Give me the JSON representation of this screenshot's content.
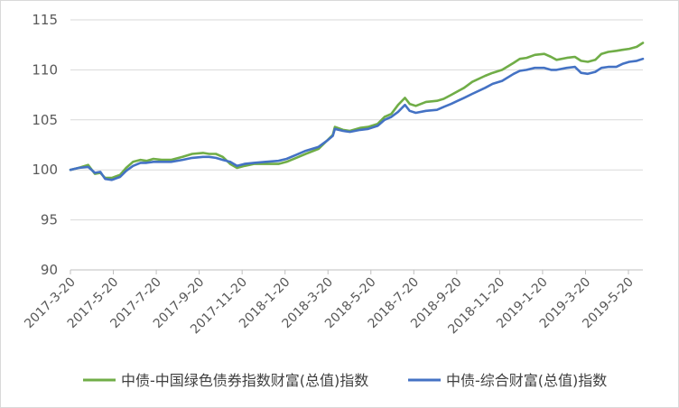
{
  "chart_data": {
    "type": "line",
    "title": "",
    "xlabel": "",
    "ylabel": "",
    "ylim": [
      90,
      115
    ],
    "yticks": [
      90,
      95,
      100,
      105,
      110,
      115
    ],
    "xtick_labels": [
      "2017-3-20",
      "2017-5-20",
      "2017-7-20",
      "2017-9-20",
      "2017-11-20",
      "2018-1-20",
      "2018-3-20",
      "2018-5-20",
      "2018-7-20",
      "2018-9-20",
      "2018-11-20",
      "2019-1-20",
      "2019-3-20",
      "2019-5-20"
    ],
    "xlim": [
      "2017-03-20",
      "2019-07-10"
    ],
    "grid": "horizontal",
    "legend_position": "bottom",
    "series": [
      {
        "name": "中债-中国绿色债券指数财富(总值)指数",
        "color": "#70ad47",
        "points": [
          [
            "2017-03-20",
            100.0
          ],
          [
            "2017-04-01",
            100.2
          ],
          [
            "2017-04-15",
            100.5
          ],
          [
            "2017-04-25",
            99.6
          ],
          [
            "2017-05-03",
            99.7
          ],
          [
            "2017-05-10",
            99.2
          ],
          [
            "2017-05-20",
            99.2
          ],
          [
            "2017-06-01",
            99.5
          ],
          [
            "2017-06-10",
            100.2
          ],
          [
            "2017-06-20",
            100.8
          ],
          [
            "2017-07-01",
            101.0
          ],
          [
            "2017-07-10",
            100.9
          ],
          [
            "2017-07-20",
            101.1
          ],
          [
            "2017-08-01",
            101.0
          ],
          [
            "2017-08-15",
            101.0
          ],
          [
            "2017-09-01",
            101.3
          ],
          [
            "2017-09-15",
            101.6
          ],
          [
            "2017-10-01",
            101.7
          ],
          [
            "2017-10-10",
            101.6
          ],
          [
            "2017-10-20",
            101.6
          ],
          [
            "2017-10-30",
            101.3
          ],
          [
            "2017-11-10",
            100.6
          ],
          [
            "2017-11-20",
            100.2
          ],
          [
            "2017-12-01",
            100.4
          ],
          [
            "2017-12-15",
            100.6
          ],
          [
            "2018-01-01",
            100.6
          ],
          [
            "2018-01-20",
            100.6
          ],
          [
            "2018-02-01",
            100.8
          ],
          [
            "2018-02-15",
            101.2
          ],
          [
            "2018-03-01",
            101.6
          ],
          [
            "2018-03-20",
            102.1
          ],
          [
            "2018-04-01",
            102.9
          ],
          [
            "2018-04-10",
            103.5
          ],
          [
            "2018-04-13",
            104.3
          ],
          [
            "2018-04-25",
            104.0
          ],
          [
            "2018-05-05",
            103.9
          ],
          [
            "2018-05-20",
            104.2
          ],
          [
            "2018-06-01",
            104.3
          ],
          [
            "2018-06-15",
            104.6
          ],
          [
            "2018-06-25",
            105.3
          ],
          [
            "2018-07-05",
            105.6
          ],
          [
            "2018-07-15",
            106.5
          ],
          [
            "2018-07-25",
            107.2
          ],
          [
            "2018-08-01",
            106.6
          ],
          [
            "2018-08-10",
            106.4
          ],
          [
            "2018-08-25",
            106.8
          ],
          [
            "2018-09-10",
            106.9
          ],
          [
            "2018-09-20",
            107.1
          ],
          [
            "2018-10-01",
            107.5
          ],
          [
            "2018-10-20",
            108.2
          ],
          [
            "2018-11-01",
            108.8
          ],
          [
            "2018-11-20",
            109.4
          ],
          [
            "2018-12-01",
            109.7
          ],
          [
            "2018-12-15",
            110.0
          ],
          [
            "2019-01-01",
            110.7
          ],
          [
            "2019-01-10",
            111.1
          ],
          [
            "2019-01-20",
            111.2
          ],
          [
            "2019-02-01",
            111.5
          ],
          [
            "2019-02-15",
            111.6
          ],
          [
            "2019-02-25",
            111.3
          ],
          [
            "2019-03-05",
            111.0
          ],
          [
            "2019-03-20",
            111.2
          ],
          [
            "2019-04-01",
            111.3
          ],
          [
            "2019-04-10",
            110.9
          ],
          [
            "2019-04-20",
            110.8
          ],
          [
            "2019-05-01",
            111.0
          ],
          [
            "2019-05-10",
            111.6
          ],
          [
            "2019-05-20",
            111.8
          ],
          [
            "2019-06-01",
            111.9
          ],
          [
            "2019-06-10",
            112.0
          ],
          [
            "2019-06-20",
            112.1
          ],
          [
            "2019-07-01",
            112.3
          ],
          [
            "2019-07-10",
            112.7
          ]
        ]
      },
      {
        "name": "中债-综合财富(总值)指数",
        "color": "#4472c4",
        "points": [
          [
            "2017-03-20",
            100.0
          ],
          [
            "2017-04-01",
            100.2
          ],
          [
            "2017-04-15",
            100.3
          ],
          [
            "2017-04-25",
            99.7
          ],
          [
            "2017-05-03",
            99.8
          ],
          [
            "2017-05-10",
            99.1
          ],
          [
            "2017-05-20",
            99.0
          ],
          [
            "2017-06-01",
            99.3
          ],
          [
            "2017-06-10",
            99.9
          ],
          [
            "2017-06-20",
            100.4
          ],
          [
            "2017-07-01",
            100.7
          ],
          [
            "2017-07-10",
            100.7
          ],
          [
            "2017-07-20",
            100.8
          ],
          [
            "2017-08-01",
            100.8
          ],
          [
            "2017-08-15",
            100.8
          ],
          [
            "2017-09-01",
            101.0
          ],
          [
            "2017-09-15",
            101.2
          ],
          [
            "2017-10-01",
            101.3
          ],
          [
            "2017-10-10",
            101.3
          ],
          [
            "2017-10-20",
            101.2
          ],
          [
            "2017-10-30",
            101.0
          ],
          [
            "2017-11-10",
            100.8
          ],
          [
            "2017-11-20",
            100.4
          ],
          [
            "2017-12-01",
            100.6
          ],
          [
            "2017-12-15",
            100.7
          ],
          [
            "2018-01-01",
            100.8
          ],
          [
            "2018-01-20",
            100.9
          ],
          [
            "2018-02-01",
            101.1
          ],
          [
            "2018-02-15",
            101.5
          ],
          [
            "2018-03-01",
            101.9
          ],
          [
            "2018-03-20",
            102.3
          ],
          [
            "2018-04-01",
            102.9
          ],
          [
            "2018-04-10",
            103.4
          ],
          [
            "2018-04-13",
            104.1
          ],
          [
            "2018-04-25",
            103.9
          ],
          [
            "2018-05-05",
            103.8
          ],
          [
            "2018-05-20",
            104.0
          ],
          [
            "2018-06-01",
            104.1
          ],
          [
            "2018-06-15",
            104.4
          ],
          [
            "2018-06-25",
            105.0
          ],
          [
            "2018-07-05",
            105.3
          ],
          [
            "2018-07-15",
            105.8
          ],
          [
            "2018-07-25",
            106.5
          ],
          [
            "2018-08-01",
            105.9
          ],
          [
            "2018-08-10",
            105.7
          ],
          [
            "2018-08-25",
            105.9
          ],
          [
            "2018-09-10",
            106.0
          ],
          [
            "2018-09-20",
            106.3
          ],
          [
            "2018-10-01",
            106.6
          ],
          [
            "2018-10-20",
            107.2
          ],
          [
            "2018-11-01",
            107.6
          ],
          [
            "2018-11-20",
            108.2
          ],
          [
            "2018-12-01",
            108.6
          ],
          [
            "2018-12-15",
            108.9
          ],
          [
            "2019-01-01",
            109.6
          ],
          [
            "2019-01-10",
            109.9
          ],
          [
            "2019-01-20",
            110.0
          ],
          [
            "2019-02-01",
            110.2
          ],
          [
            "2019-02-15",
            110.2
          ],
          [
            "2019-02-25",
            110.0
          ],
          [
            "2019-03-05",
            110.0
          ],
          [
            "2019-03-20",
            110.2
          ],
          [
            "2019-04-01",
            110.3
          ],
          [
            "2019-04-10",
            109.7
          ],
          [
            "2019-04-20",
            109.6
          ],
          [
            "2019-05-01",
            109.8
          ],
          [
            "2019-05-10",
            110.2
          ],
          [
            "2019-05-20",
            110.3
          ],
          [
            "2019-06-01",
            110.3
          ],
          [
            "2019-06-10",
            110.6
          ],
          [
            "2019-06-20",
            110.8
          ],
          [
            "2019-07-01",
            110.9
          ],
          [
            "2019-07-10",
            111.1
          ]
        ]
      }
    ]
  }
}
